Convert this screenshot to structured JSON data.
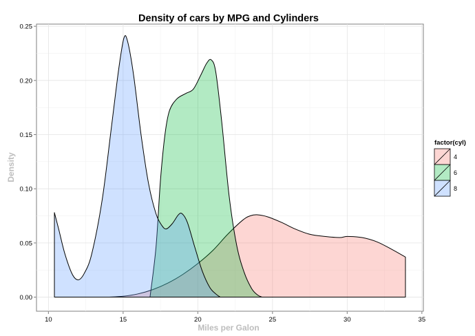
{
  "chart_data": {
    "type": "area",
    "title": "Density of cars by MPG and Cylinders",
    "xlabel": "Miles per Galon",
    "ylabel": "Density",
    "xlim": [
      9.2,
      35.1
    ],
    "ylim": [
      -0.013,
      0.252
    ],
    "x_ticks": [
      10,
      15,
      20,
      25,
      30,
      35
    ],
    "y_ticks": [
      0.0,
      0.05,
      0.1,
      0.15,
      0.2,
      0.25
    ],
    "x_tick_labels": [
      "10",
      "15",
      "20",
      "25",
      "30",
      "35"
    ],
    "y_tick_labels": [
      "0.00",
      "0.05",
      "0.10",
      "0.15",
      "0.20",
      "0.25"
    ],
    "grid": true,
    "legend_title": "factor(cyl)",
    "legend_position": "right",
    "series": [
      {
        "name": "4",
        "color": "#F8766D",
        "points": [
          [
            14.0,
            0.0
          ],
          [
            15.0,
            0.0008
          ],
          [
            16.0,
            0.003
          ],
          [
            17.0,
            0.007
          ],
          [
            18.0,
            0.013
          ],
          [
            19.0,
            0.021
          ],
          [
            20.0,
            0.031
          ],
          [
            21.0,
            0.043
          ],
          [
            22.0,
            0.058
          ],
          [
            23.0,
            0.071
          ],
          [
            23.5,
            0.075
          ],
          [
            24.0,
            0.076
          ],
          [
            24.7,
            0.074
          ],
          [
            25.6,
            0.069
          ],
          [
            26.5,
            0.063
          ],
          [
            27.5,
            0.058
          ],
          [
            28.5,
            0.056
          ],
          [
            29.5,
            0.055
          ],
          [
            30.0,
            0.056
          ],
          [
            31.0,
            0.055
          ],
          [
            32.0,
            0.051
          ],
          [
            33.0,
            0.044
          ],
          [
            33.9,
            0.037
          ]
        ]
      },
      {
        "name": "6",
        "color": "#00BA38",
        "points": [
          [
            16.8,
            0.0
          ],
          [
            17.2,
            0.046
          ],
          [
            17.5,
            0.108
          ],
          [
            17.8,
            0.15
          ],
          [
            18.1,
            0.172
          ],
          [
            18.6,
            0.183
          ],
          [
            19.2,
            0.188
          ],
          [
            19.7,
            0.192
          ],
          [
            20.2,
            0.205
          ],
          [
            20.6,
            0.216
          ],
          [
            20.9,
            0.219
          ],
          [
            21.2,
            0.208
          ],
          [
            21.6,
            0.162
          ],
          [
            22.1,
            0.093
          ],
          [
            22.6,
            0.048
          ],
          [
            23.1,
            0.023
          ],
          [
            23.6,
            0.008
          ],
          [
            24.0,
            0.002
          ],
          [
            24.3,
            0.0
          ]
        ]
      },
      {
        "name": "8",
        "color": "#619CFF",
        "points": [
          [
            10.4,
            0.078
          ],
          [
            10.7,
            0.062
          ],
          [
            11.1,
            0.04
          ],
          [
            11.6,
            0.021
          ],
          [
            12.0,
            0.016
          ],
          [
            12.4,
            0.022
          ],
          [
            12.9,
            0.04
          ],
          [
            13.6,
            0.09
          ],
          [
            14.2,
            0.155
          ],
          [
            14.7,
            0.21
          ],
          [
            15.05,
            0.239
          ],
          [
            15.3,
            0.236
          ],
          [
            15.7,
            0.205
          ],
          [
            16.2,
            0.15
          ],
          [
            16.7,
            0.105
          ],
          [
            17.2,
            0.077
          ],
          [
            17.6,
            0.066
          ],
          [
            17.9,
            0.063
          ],
          [
            18.3,
            0.068
          ],
          [
            18.7,
            0.076
          ],
          [
            18.95,
            0.077
          ],
          [
            19.3,
            0.069
          ],
          [
            19.8,
            0.046
          ],
          [
            20.3,
            0.024
          ],
          [
            20.8,
            0.009
          ],
          [
            21.2,
            0.003
          ],
          [
            21.5,
            0.0
          ]
        ]
      }
    ]
  }
}
